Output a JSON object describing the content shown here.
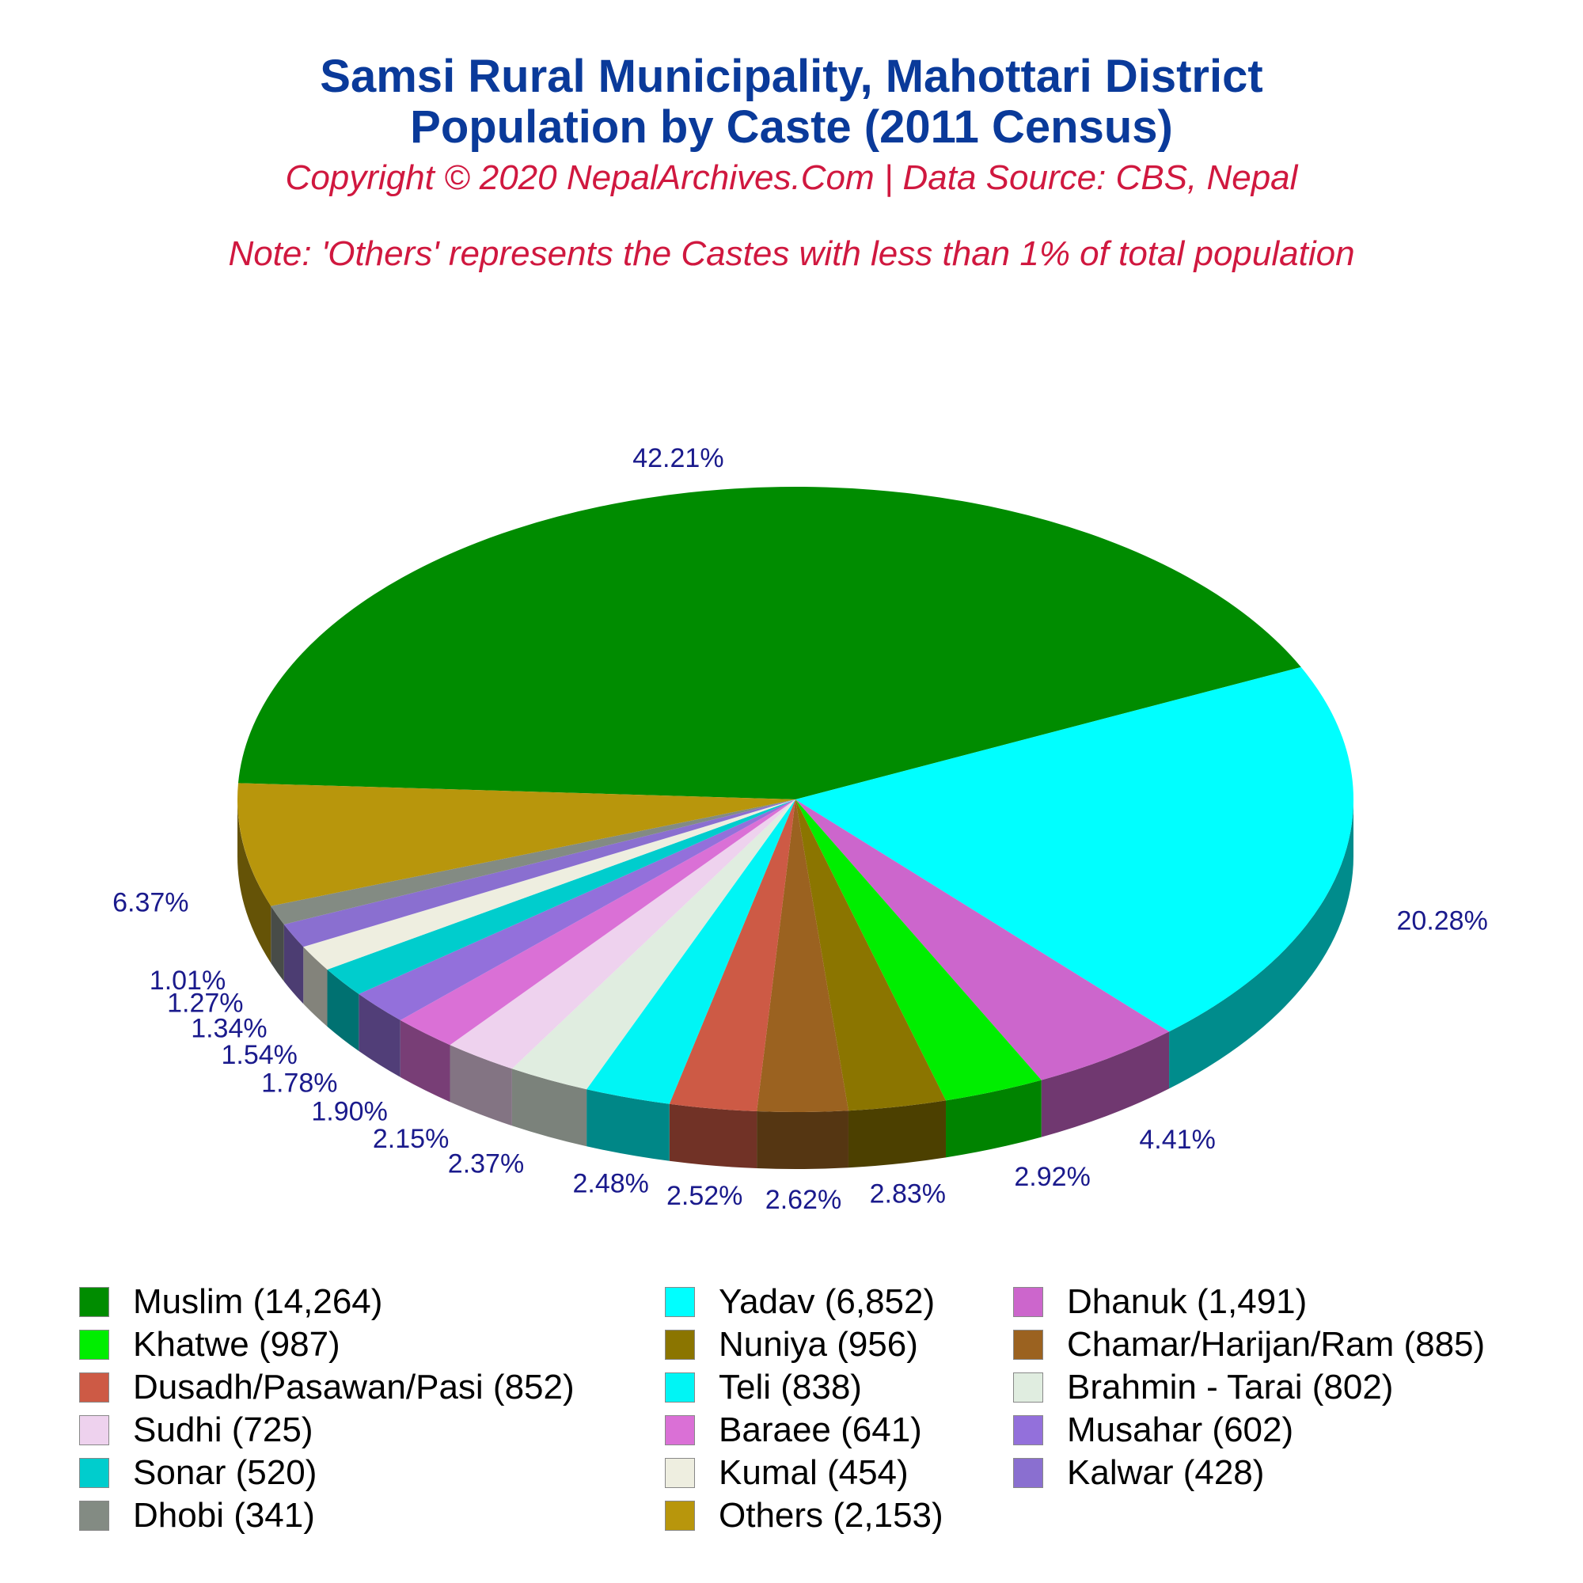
{
  "header": {
    "title_line1": "Samsi Rural Municipality, Mahottari District",
    "title_line2": "Population by Caste (2011 Census)",
    "copyright": "Copyright © 2020 NepalArchives.Com | Data Source: CBS, Nepal",
    "note": "Note: 'Others' represents the Castes with less than 1% of total population"
  },
  "colors": {
    "title": "#0a3a9a",
    "subtitle": "#d0183f",
    "percent_label": "#1a1a8c"
  },
  "chart_data": {
    "type": "pie",
    "style": "3d",
    "title": "Samsi Rural Municipality, Mahottari District Population by Caste (2011 Census)",
    "slices": [
      {
        "name": "Muslim",
        "value": 14264,
        "percent_label": "42.21%",
        "legend_label": "Muslim (14,264)",
        "color": "#008c00"
      },
      {
        "name": "Yadav",
        "value": 6852,
        "percent_label": "20.28%",
        "legend_label": "Yadav (6,852)",
        "color": "#00ffff"
      },
      {
        "name": "Dhanuk",
        "value": 1491,
        "percent_label": "4.41%",
        "legend_label": "Dhanuk (1,491)",
        "color": "#cc66cc"
      },
      {
        "name": "Khatwe",
        "value": 987,
        "percent_label": "2.92%",
        "legend_label": "Khatwe (987)",
        "color": "#00ee00"
      },
      {
        "name": "Nuniya",
        "value": 956,
        "percent_label": "2.83%",
        "legend_label": "Nuniya (956)",
        "color": "#8b7500"
      },
      {
        "name": "Chamar/Harijan/Ram",
        "value": 885,
        "percent_label": "2.62%",
        "legend_label": "Chamar/Harijan/Ram (885)",
        "color": "#9b6220"
      },
      {
        "name": "Dusadh/Pasawan/Pasi",
        "value": 852,
        "percent_label": "2.52%",
        "legend_label": "Dusadh/Pasawan/Pasi (852)",
        "color": "#cd5a45"
      },
      {
        "name": "Teli",
        "value": 838,
        "percent_label": "2.48%",
        "legend_label": "Teli (838)",
        "color": "#00f5f5"
      },
      {
        "name": "Brahmin - Tarai",
        "value": 802,
        "percent_label": "2.37%",
        "legend_label": "Brahmin - Tarai (802)",
        "color": "#e0ede0"
      },
      {
        "name": "Sudhi",
        "value": 725,
        "percent_label": "2.15%",
        "legend_label": "Sudhi (725)",
        "color": "#eed2ee"
      },
      {
        "name": "Baraee",
        "value": 641,
        "percent_label": "1.90%",
        "legend_label": "Baraee (641)",
        "color": "#da70d6"
      },
      {
        "name": "Musahar",
        "value": 602,
        "percent_label": "1.78%",
        "legend_label": "Musahar (602)",
        "color": "#9370db"
      },
      {
        "name": "Sonar",
        "value": 520,
        "percent_label": "1.54%",
        "legend_label": "Sonar (520)",
        "color": "#00cdcd"
      },
      {
        "name": "Kumal",
        "value": 454,
        "percent_label": "1.34%",
        "legend_label": "Kumal (454)",
        "color": "#eeeee0"
      },
      {
        "name": "Kalwar",
        "value": 428,
        "percent_label": "1.27%",
        "legend_label": "Kalwar (428)",
        "color": "#8a6fd0"
      },
      {
        "name": "Dhobi",
        "value": 341,
        "percent_label": "1.01%",
        "legend_label": "Dhobi (341)",
        "color": "#838b83"
      },
      {
        "name": "Others",
        "value": 2153,
        "percent_label": "6.37%",
        "legend_label": "Others (2,153)",
        "color": "#b8960c"
      }
    ],
    "legend_order": [
      "Muslim",
      "Yadav",
      "Dhanuk",
      "Khatwe",
      "Nuniya",
      "Chamar/Harijan/Ram",
      "Dusadh/Pasawan/Pasi",
      "Teli",
      "Brahmin - Tarai",
      "Sudhi",
      "Baraee",
      "Musahar",
      "Sonar",
      "Kumal",
      "Kalwar",
      "Dhobi",
      "Others"
    ],
    "legend_placement": "bottom",
    "legend_columns": 3
  }
}
